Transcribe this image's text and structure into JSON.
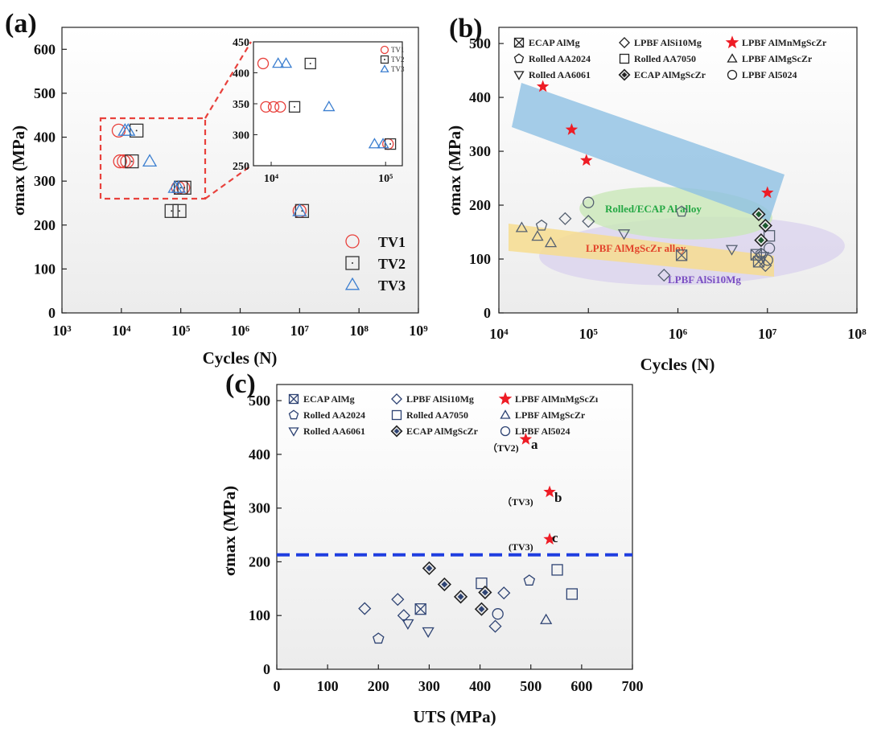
{
  "panels": {
    "a": {
      "label": "(a)",
      "xlabel": "Cycles (N)",
      "ylabel": "σmax (MPa)",
      "xticks": [
        "10³",
        "10⁴",
        "10⁵",
        "10⁶",
        "10⁷",
        "10⁸",
        "10⁹"
      ],
      "yticks": [
        "0",
        "100",
        "200",
        "300",
        "400",
        "500",
        "600"
      ],
      "legend": [
        "TV1",
        "TV2",
        "TV3"
      ],
      "inset_xticks": [
        "10⁴",
        "10⁵"
      ],
      "inset_yticks": [
        "250",
        "300",
        "350",
        "400",
        "450"
      ]
    },
    "b": {
      "label": "(b)",
      "xlabel": "Cycles (N)",
      "ylabel": "σmax (MPa)",
      "xticks": [
        "10⁴",
        "10⁵",
        "10⁶",
        "10⁷",
        "10⁸"
      ],
      "yticks": [
        "0",
        "100",
        "200",
        "300",
        "400",
        "500"
      ],
      "annotations": {
        "rolled": "Rolled/ECAP Al alloy",
        "lpbf_scz": "LPBF AlMgScZr alloy",
        "lpbf_si": "LPBF AlSi10Mg"
      }
    },
    "c": {
      "label": "(c)",
      "xlabel": "UTS (MPa)",
      "ylabel": "σmax (MPa)",
      "xticks": [
        "0",
        "100",
        "200",
        "300",
        "400",
        "500",
        "600",
        "700"
      ],
      "yticks": [
        "0",
        "100",
        "200",
        "300",
        "400",
        "500"
      ],
      "point_labels": [
        {
          "tag": "（TV2)",
          "letter": "a"
        },
        {
          "tag": "（TV3)",
          "letter": "b"
        },
        {
          "tag": "(TV3)",
          "letter": "c"
        }
      ]
    }
  },
  "legend_bc": [
    "ECAP AlMg",
    "Rolled AA2024",
    "Rolled AA6061",
    "LPBF AlSi10Mg",
    "Rolled AA7050",
    "ECAP AlMgScZr",
    "LPBF  AlMnMgScZr",
    "LPBF AlMgScZr",
    "LPBF Al5024"
  ],
  "legend_c_star": "LPBF  AlMnMgScZı",
  "colors": {
    "tv1": "#e8413c",
    "tv2": "#333333",
    "tv3": "#3c7fd0",
    "navy": "#2e4373",
    "star": "#ee1c25",
    "dashed": "#1f3ee0",
    "blue_band": "#8fc0e4",
    "green_band": "#c9e7b8",
    "orange_band": "#f8dc8a",
    "purple_band": "#d9d2ee",
    "green_text": "#25a844",
    "red_text": "#e2432a",
    "purple_text": "#7a4ec2"
  },
  "chart_data": [
    {
      "panel": "a",
      "type": "scatter",
      "xscale": "log",
      "xlim": [
        1000,
        1000000000
      ],
      "ylim": [
        0,
        650
      ],
      "series": [
        {
          "name": "TV1",
          "marker": "circle",
          "points": [
            [
              9000,
              415
            ],
            [
              9500,
              345
            ],
            [
              11000,
              345
            ],
            [
              12500,
              345
            ],
            [
              90000,
              285
            ],
            [
              110000,
              285
            ],
            [
              10000000,
              232
            ]
          ]
        },
        {
          "name": "TV2",
          "marker": "square",
          "points": [
            [
              18000,
              415
            ],
            [
              15000,
              345
            ],
            [
              100000,
              285
            ],
            [
              115000,
              285
            ],
            [
              70000,
              232
            ],
            [
              95000,
              232
            ],
            [
              11000000,
              232
            ]
          ]
        },
        {
          "name": "TV3",
          "marker": "triangle",
          "points": [
            [
              11500,
              415
            ],
            [
              13000,
              415
            ],
            [
              30000,
              345
            ],
            [
              80000,
              285
            ],
            [
              92000,
              285
            ],
            [
              10000000,
              232
            ]
          ]
        }
      ],
      "inset": {
        "xscale": "log",
        "xlim": [
          7000,
          140000
        ],
        "ylim": [
          250,
          450
        ],
        "series": [
          {
            "name": "TV1",
            "points": [
              [
                8500,
                415
              ],
              [
                9000,
                345
              ],
              [
                10500,
                345
              ],
              [
                12000,
                345
              ],
              [
                105000,
                285
              ]
            ]
          },
          {
            "name": "TV2",
            "points": [
              [
                22000,
                415
              ],
              [
                16000,
                345
              ],
              [
                110000,
                285
              ]
            ]
          },
          {
            "name": "TV3",
            "points": [
              [
                11500,
                415
              ],
              [
                13500,
                415
              ],
              [
                32000,
                345
              ],
              [
                80000,
                285
              ],
              [
                95000,
                285
              ]
            ]
          }
        ]
      }
    },
    {
      "panel": "b",
      "type": "scatter",
      "xscale": "log",
      "xlim": [
        10000,
        100000000
      ],
      "ylim": [
        0,
        530
      ],
      "series": [
        {
          "name": "ECAP AlMg",
          "marker": "square-x",
          "points": [
            [
              1100000,
              107
            ],
            [
              8000000,
              95
            ],
            [
              7500000,
              108
            ]
          ]
        },
        {
          "name": "Rolled AA2024",
          "marker": "pentagon",
          "points": [
            [
              30000,
              162
            ],
            [
              1100000,
              188
            ],
            [
              8500000,
              110
            ]
          ]
        },
        {
          "name": "Rolled AA6061",
          "marker": "triangle-down",
          "points": [
            [
              250000,
              147
            ],
            [
              4000000,
              118
            ],
            [
              9000000,
              105
            ]
          ]
        },
        {
          "name": "LPBF AlSi10Mg",
          "marker": "diamond",
          "points": [
            [
              55000,
              175
            ],
            [
              100000,
              170
            ],
            [
              700000,
              70
            ],
            [
              9500000,
              88
            ]
          ]
        },
        {
          "name": "Rolled AA7050",
          "marker": "square",
          "points": [
            [
              10500000,
              143
            ]
          ]
        },
        {
          "name": "ECAP AlMgScZr",
          "marker": "diamond-filled",
          "points": [
            [
              8000000,
              183
            ],
            [
              9500000,
              162
            ],
            [
              8500000,
              135
            ]
          ]
        },
        {
          "name": "LPBF  AlMnMgScZr",
          "marker": "star",
          "points": [
            [
              31000,
              420
            ],
            [
              65000,
              340
            ],
            [
              95000,
              283
            ],
            [
              10000000,
              223
            ]
          ]
        },
        {
          "name": "LPBF AlMgScZr",
          "marker": "triangle",
          "points": [
            [
              18000,
              158
            ],
            [
              27000,
              142
            ],
            [
              38000,
              130
            ]
          ]
        },
        {
          "name": "LPBF Al5024",
          "marker": "circle",
          "points": [
            [
              100000,
              205
            ],
            [
              10500000,
              120
            ],
            [
              10000000,
              98
            ]
          ]
        }
      ]
    },
    {
      "panel": "c",
      "type": "scatter",
      "xlim": [
        0,
        700
      ],
      "ylim": [
        0,
        530
      ],
      "reference_line_y": 213,
      "series": [
        {
          "name": "ECAP AlMg",
          "marker": "square-x",
          "points": [
            [
              283,
              112
            ]
          ]
        },
        {
          "name": "Rolled AA2024",
          "marker": "pentagon",
          "points": [
            [
              200,
              57
            ],
            [
              497,
              165
            ]
          ]
        },
        {
          "name": "Rolled AA6061",
          "marker": "triangle-down",
          "points": [
            [
              258,
              85
            ],
            [
              298,
              70
            ]
          ]
        },
        {
          "name": "LPBF AlSi10Mg",
          "marker": "diamond",
          "points": [
            [
              173,
              113
            ],
            [
              238,
              130
            ],
            [
              250,
              100
            ],
            [
              430,
              80
            ],
            [
              447,
              142
            ]
          ]
        },
        {
          "name": "Rolled AA7050",
          "marker": "square",
          "points": [
            [
              403,
              160
            ],
            [
              552,
              185
            ],
            [
              581,
              140
            ]
          ]
        },
        {
          "name": "ECAP AlMgScZr",
          "marker": "diamond-filled",
          "points": [
            [
              300,
              188
            ],
            [
              330,
              158
            ],
            [
              362,
              135
            ],
            [
              403,
              112
            ],
            [
              410,
              143
            ]
          ]
        },
        {
          "name": "LPBF  AlMnMgScZı",
          "marker": "star",
          "points": [
            [
              490,
              428
            ],
            [
              537,
              330
            ],
            [
              537,
              242
            ]
          ]
        },
        {
          "name": "LPBF AlMgScZr",
          "marker": "triangle",
          "points": [
            [
              530,
              92
            ]
          ]
        },
        {
          "name": "LPBF Al5024",
          "marker": "circle",
          "points": [
            [
              435,
              103
            ]
          ]
        }
      ]
    }
  ]
}
